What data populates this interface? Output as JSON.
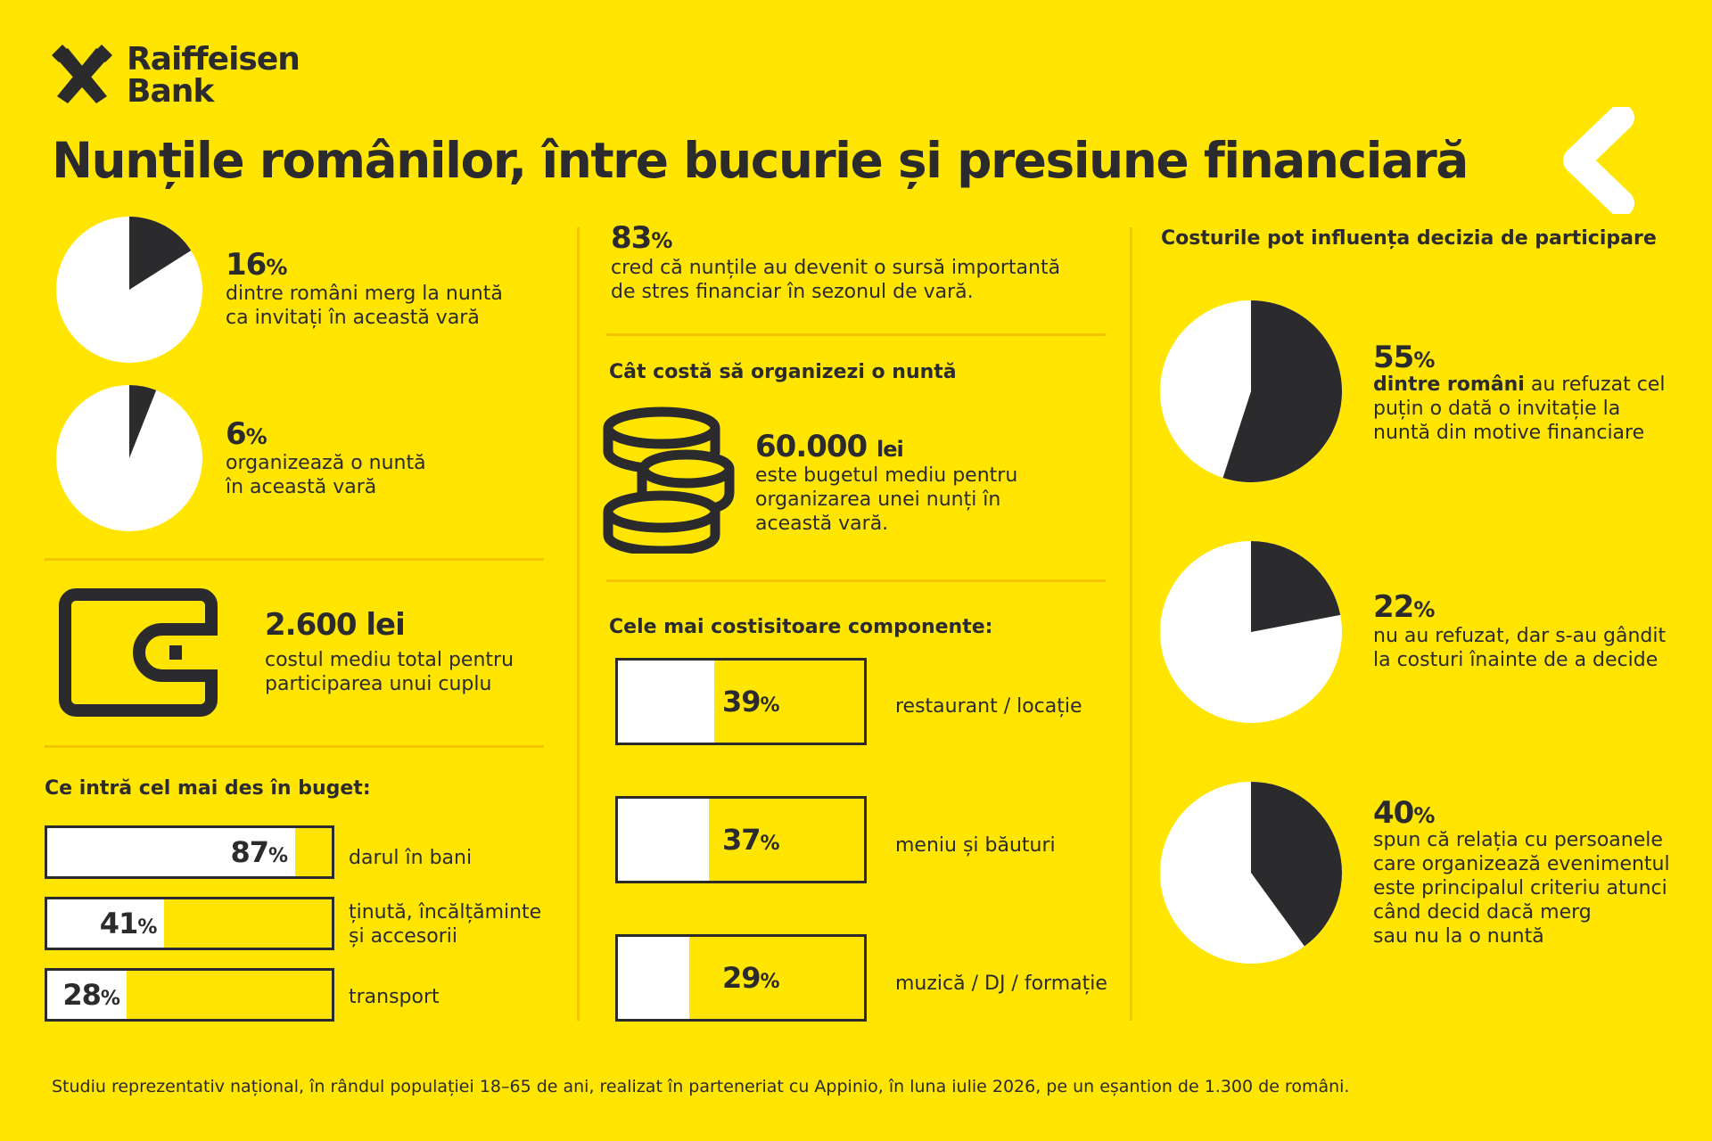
{
  "brand": {
    "name_line1": "Raiffeisen",
    "name_line2": "Bank"
  },
  "title": "Nunțile românilor, între bucurie și presiune financiară",
  "colors": {
    "background": "#FFE500",
    "dark": "#2B2B2E",
    "white": "#FFFFFF",
    "divider": "#F5C400"
  },
  "icons": {
    "logo": "crossed-gables-icon",
    "chevron": "chevron-left-icon",
    "wallet": "wallet-icon",
    "coins": "coin-stack-icon"
  },
  "left": {
    "stat1": {
      "value": "16",
      "unit": "%",
      "desc": "dintre români merg la nuntă\nca invitați în această vară"
    },
    "stat2": {
      "value": "6",
      "unit": "%",
      "desc": "organizează o nuntă\nîn această vară"
    },
    "cost": {
      "value": "2.600 lei",
      "desc": "costul mediu total pentru\nparticiparea unui cuplu"
    },
    "budget_heading": "Ce intră cel mai des în buget:",
    "budget_items": [
      {
        "value": "87",
        "unit": "%",
        "label": "darul în bani"
      },
      {
        "value": "41",
        "unit": "%",
        "label": "ținută, încălțăminte\nși accesorii"
      },
      {
        "value": "28",
        "unit": "%",
        "label": "transport"
      }
    ]
  },
  "middle": {
    "stat": {
      "value": "83",
      "unit": "%",
      "desc": "cred că nunțile au devenit o sursă importantă\nde stres financiar în sezonul de vară."
    },
    "cost_heading": "Cât costă să organizezi o nuntă",
    "cost": {
      "value": "60.000",
      "unit": "lei",
      "desc": "este bugetul mediu pentru\norganizarea unei nunți în\naceastă vară."
    },
    "components_heading": "Cele mai costisitoare componente:",
    "components": [
      {
        "value": "39",
        "unit": "%",
        "label": "restaurant / locație"
      },
      {
        "value": "37",
        "unit": "%",
        "label": "meniu și băuturi"
      },
      {
        "value": "29",
        "unit": "%",
        "label": "muzică / DJ / formație"
      }
    ]
  },
  "right": {
    "heading": "Costurile pot influența decizia de participare",
    "stats": [
      {
        "value": "55",
        "unit": "%",
        "desc_bold": "dintre români",
        "desc": " au refuzat cel\npuțin o dată o invitație la\nnuntă din motive financiare"
      },
      {
        "value": "22",
        "unit": "%",
        "desc_bold": "",
        "desc": "nu au refuzat, dar s-au gândit\nla costuri înainte de a decide"
      },
      {
        "value": "40",
        "unit": "%",
        "desc_bold": "",
        "desc": "spun că relația cu persoanele\ncare organizează evenimentul\neste principalul criteriu atunci\ncând decid dacă merg\nsau nu la o nuntă"
      }
    ]
  },
  "footer": "Studiu reprezentativ național, în rândul populației 18–65 de ani, realizat în parteneriat cu Appinio, în luna iulie 2026, pe un eșantion de 1.300 de români.",
  "chart_data": [
    {
      "type": "pie",
      "values": [
        16,
        84
      ],
      "labels": [
        "16%",
        ""
      ]
    },
    {
      "type": "pie",
      "values": [
        6,
        94
      ],
      "labels": [
        "6%",
        ""
      ]
    },
    {
      "type": "bar",
      "orientation": "horizontal",
      "title": "Ce intră cel mai des în buget:",
      "categories": [
        "darul în bani",
        "ținută, încălțăminte și accesorii",
        "transport"
      ],
      "values": [
        87,
        41,
        28
      ]
    },
    {
      "type": "bar",
      "orientation": "horizontal",
      "title": "Cele mai costisitoare componente:",
      "categories": [
        "restaurant / locație",
        "meniu și băuturi",
        "muzică / DJ / formație"
      ],
      "values": [
        39,
        37,
        29
      ]
    },
    {
      "type": "pie",
      "values": [
        55,
        45
      ],
      "labels": [
        "55%",
        ""
      ]
    },
    {
      "type": "pie",
      "values": [
        22,
        78
      ],
      "labels": [
        "22%",
        ""
      ]
    },
    {
      "type": "pie",
      "values": [
        40,
        60
      ],
      "labels": [
        "40%",
        ""
      ]
    }
  ]
}
